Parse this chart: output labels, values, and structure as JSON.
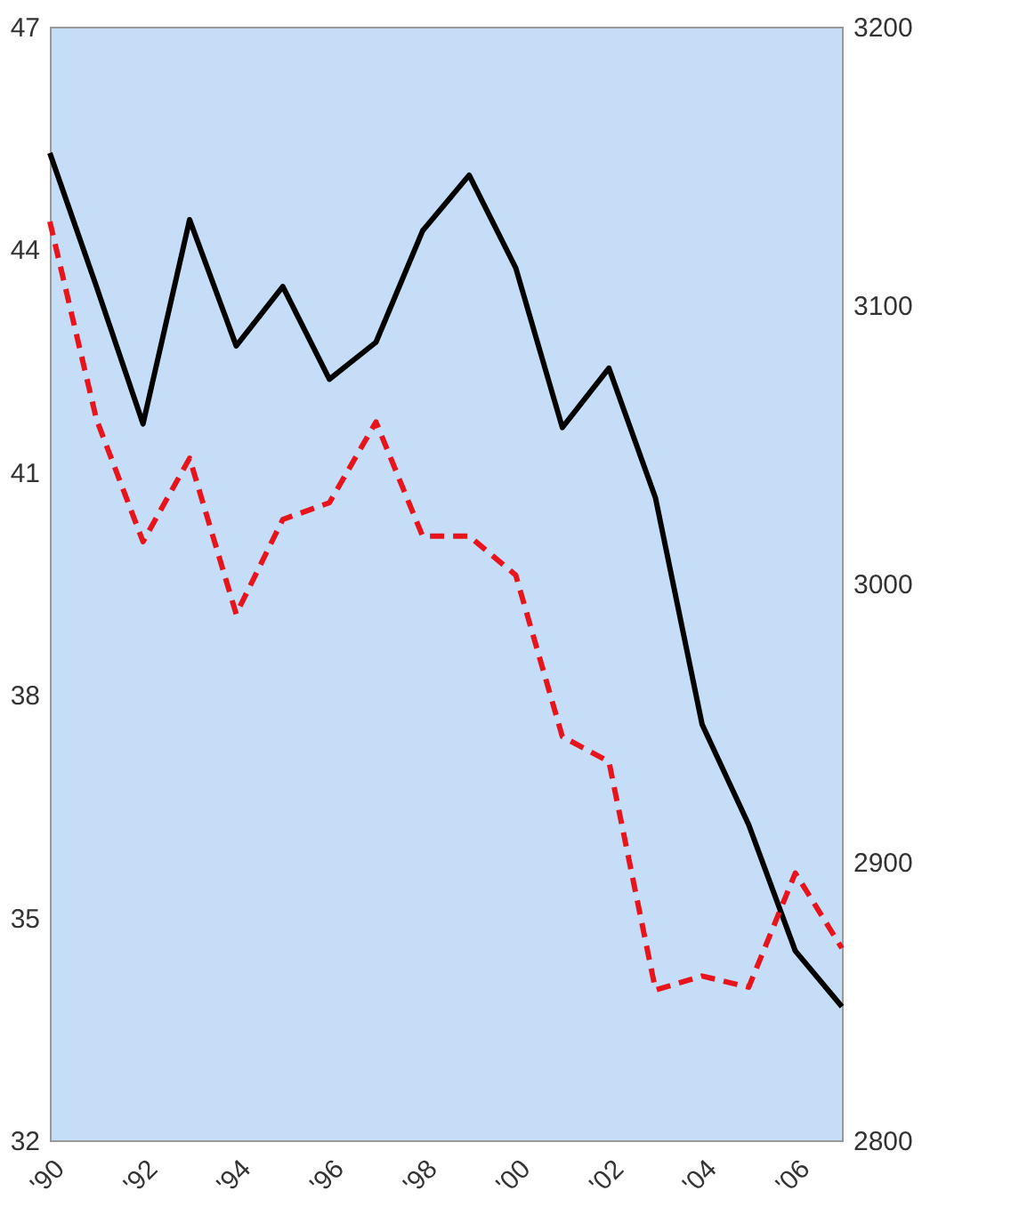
{
  "chart_data": {
    "type": "line",
    "x": [
      1990,
      1991,
      1992,
      1993,
      1994,
      1995,
      1996,
      1997,
      1998,
      1999,
      2000,
      2001,
      2002,
      2003,
      2004,
      2005,
      2006,
      2007
    ],
    "series": [
      {
        "color": "#000000",
        "line_style": "solid",
        "values": [
          45.3,
          43.5,
          41.65,
          44.4,
          42.7,
          43.5,
          42.25,
          42.75,
          44.25,
          45.0,
          43.75,
          41.6,
          42.4,
          40.65,
          37.6,
          36.25,
          34.55,
          33.8
        ]
      },
      {
        "color": "#e8141c",
        "line_style": "dashed",
        "axis": "y2",
        "values": [
          3130,
          3059,
          3015,
          3045,
          2989,
          3023,
          3029,
          3058,
          3017,
          3017,
          3003,
          2945,
          2936,
          2854,
          2859,
          2855,
          2896,
          2869
        ]
      }
    ],
    "xlim": [
      1990,
      2007
    ],
    "xticks": [
      {
        "value": 1990,
        "label": "'90"
      },
      {
        "value": 1992,
        "label": "'92"
      },
      {
        "value": 1994,
        "label": "'94"
      },
      {
        "value": 1996,
        "label": "'96"
      },
      {
        "value": 1998,
        "label": "'98"
      },
      {
        "value": 2000,
        "label": "'00"
      },
      {
        "value": 2002,
        "label": "'02"
      },
      {
        "value": 2004,
        "label": "'04"
      },
      {
        "value": 2006,
        "label": "'06"
      }
    ],
    "ylim": [
      32,
      47
    ],
    "yticks": [
      32,
      35,
      38,
      41,
      44,
      47
    ],
    "y2lim": [
      2800,
      3200
    ],
    "y2ticks": [
      2800,
      2900,
      3000,
      3100,
      3200
    ],
    "grid": false,
    "marker": "none"
  }
}
